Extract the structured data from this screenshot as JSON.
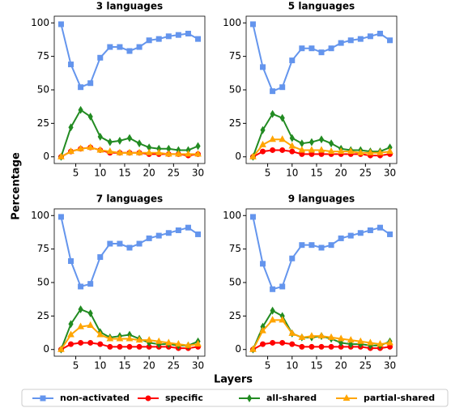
{
  "xlabel": "Layers",
  "ylabel": "Percentage",
  "series": [
    {
      "name": "non-activated",
      "color": "#6495ed",
      "marker": "square"
    },
    {
      "name": "specific",
      "color": "#ff0000",
      "marker": "circle"
    },
    {
      "name": "all-shared",
      "color": "#228b22",
      "marker": "diamond"
    },
    {
      "name": "partial-shared",
      "color": "#ffa500",
      "marker": "triangle"
    }
  ],
  "legend": "bottom",
  "chart_data": [
    {
      "type": "line",
      "title": "3 languages",
      "x": [
        2,
        4,
        6,
        8,
        10,
        12,
        14,
        16,
        18,
        20,
        22,
        24,
        26,
        28,
        30
      ],
      "values": [
        [
          99,
          69,
          52,
          55,
          74,
          82,
          82,
          79,
          82,
          87,
          88,
          90,
          91,
          92,
          88
        ],
        [
          0,
          4,
          6,
          7,
          5,
          3,
          3,
          3,
          3,
          2,
          2,
          2,
          2,
          1,
          2
        ],
        [
          0,
          22,
          35,
          30,
          15,
          11,
          12,
          14,
          10,
          7,
          6,
          6,
          5,
          5,
          8
        ],
        [
          0,
          4,
          6,
          7,
          5,
          4,
          3,
          3,
          3,
          3,
          3,
          2,
          2,
          2,
          2
        ]
      ],
      "xlim": [
        0.6,
        31.4
      ],
      "ylim": [
        -5,
        105
      ],
      "xticks": [
        5,
        10,
        15,
        20,
        25,
        30
      ],
      "yticks": [
        0,
        25,
        50,
        75,
        100
      ]
    },
    {
      "type": "line",
      "title": "5 languages",
      "x": [
        2,
        4,
        6,
        8,
        10,
        12,
        14,
        16,
        18,
        20,
        22,
        24,
        26,
        28,
        30
      ],
      "values": [
        [
          99,
          67,
          49,
          52,
          72,
          81,
          81,
          78,
          81,
          85,
          87,
          88,
          90,
          92,
          87
        ],
        [
          0,
          4,
          5,
          5,
          4,
          2,
          2,
          2,
          2,
          2,
          2,
          2,
          1,
          1,
          2
        ],
        [
          0,
          20,
          32,
          29,
          14,
          10,
          11,
          13,
          10,
          6,
          5,
          5,
          4,
          4,
          7
        ],
        [
          0,
          9,
          13,
          13,
          8,
          5,
          5,
          5,
          4,
          4,
          4,
          3,
          3,
          3,
          4
        ]
      ],
      "xlim": [
        0.6,
        31.4
      ],
      "ylim": [
        -5,
        105
      ],
      "xticks": [
        5,
        10,
        15,
        20,
        25,
        30
      ],
      "yticks": [
        0,
        25,
        50,
        75,
        100
      ]
    },
    {
      "type": "line",
      "title": "7 languages",
      "x": [
        2,
        4,
        6,
        8,
        10,
        12,
        14,
        16,
        18,
        20,
        22,
        24,
        26,
        28,
        30
      ],
      "values": [
        [
          99,
          66,
          47,
          49,
          69,
          79,
          79,
          76,
          79,
          83,
          85,
          87,
          89,
          91,
          86
        ],
        [
          0,
          4,
          5,
          5,
          4,
          2,
          2,
          2,
          2,
          2,
          2,
          2,
          1,
          1,
          2
        ],
        [
          0,
          19,
          30,
          27,
          13,
          9,
          10,
          11,
          8,
          5,
          4,
          4,
          3,
          3,
          6
        ],
        [
          0,
          11,
          17,
          18,
          11,
          8,
          8,
          8,
          7,
          7,
          6,
          5,
          4,
          3,
          4
        ]
      ],
      "xlim": [
        0.6,
        31.4
      ],
      "ylim": [
        -5,
        105
      ],
      "xticks": [
        5,
        10,
        15,
        20,
        25,
        30
      ],
      "yticks": [
        0,
        25,
        50,
        75,
        100
      ]
    },
    {
      "type": "line",
      "title": "9 languages",
      "x": [
        2,
        4,
        6,
        8,
        10,
        12,
        14,
        16,
        18,
        20,
        22,
        24,
        26,
        28,
        30
      ],
      "values": [
        [
          99,
          64,
          45,
          47,
          68,
          78,
          78,
          76,
          78,
          83,
          85,
          87,
          89,
          91,
          86
        ],
        [
          0,
          4,
          5,
          5,
          4,
          2,
          2,
          2,
          2,
          2,
          2,
          2,
          1,
          1,
          2
        ],
        [
          0,
          17,
          29,
          25,
          12,
          9,
          9,
          10,
          8,
          5,
          4,
          4,
          3,
          3,
          6
        ],
        [
          0,
          14,
          22,
          22,
          12,
          9,
          10,
          10,
          9,
          8,
          7,
          6,
          5,
          4,
          5
        ]
      ],
      "xlim": [
        0.6,
        31.4
      ],
      "ylim": [
        -5,
        105
      ],
      "xticks": [
        5,
        10,
        15,
        20,
        25,
        30
      ],
      "yticks": [
        0,
        25,
        50,
        75,
        100
      ]
    }
  ]
}
